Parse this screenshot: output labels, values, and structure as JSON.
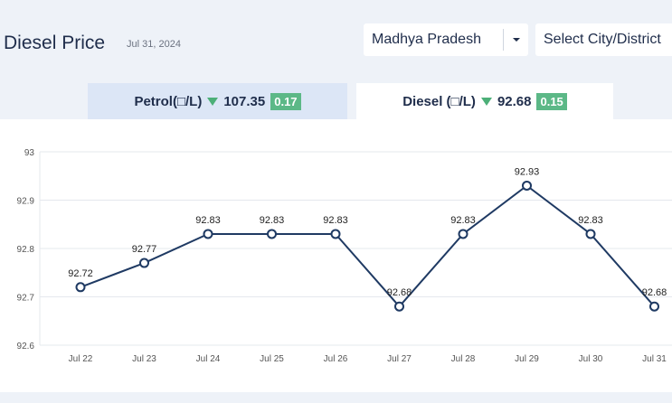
{
  "header": {
    "title": "Diesel Price",
    "date": "Jul 31, 2024"
  },
  "filters": {
    "state": "Madhya Pradesh",
    "city_placeholder": "Select City/District"
  },
  "tabs": {
    "petrol": {
      "label": "Petrol(□/L)",
      "price": "107.35",
      "change": "0.17",
      "active": false
    },
    "diesel": {
      "label": "Diesel (□/L)",
      "price": "92.68",
      "change": "0.15",
      "active": true
    }
  },
  "colors": {
    "line": "#1f3a63",
    "down_arrow": "#4caf78",
    "badge": "#5cb887",
    "grid": "#e5e8ee",
    "tick_text": "#555555"
  },
  "icons": {
    "dropdown": "chevron-down-icon",
    "price_trend": "triangle-down-icon"
  },
  "chart_data": {
    "type": "line",
    "x": [
      "Jul 22",
      "Jul 23",
      "Jul 24",
      "Jul 25",
      "Jul 26",
      "Jul 27",
      "Jul 28",
      "Jul 29",
      "Jul 30",
      "Jul 31"
    ],
    "series": [
      {
        "values": [
          92.72,
          92.77,
          92.83,
          92.83,
          92.83,
          92.68,
          92.83,
          92.93,
          92.83,
          92.68
        ]
      }
    ],
    "data_labels": [
      "92.72",
      "92.77",
      "92.83",
      "92.83",
      "92.83",
      "92.68",
      "92.83",
      "92.93",
      "92.83",
      "92.68"
    ],
    "ylim": [
      92.6,
      93
    ],
    "yticks": [
      "92.6",
      "92.7",
      "92.8",
      "92.9",
      "93"
    ],
    "grid": true,
    "title": "",
    "xlabel": "",
    "ylabel": ""
  }
}
